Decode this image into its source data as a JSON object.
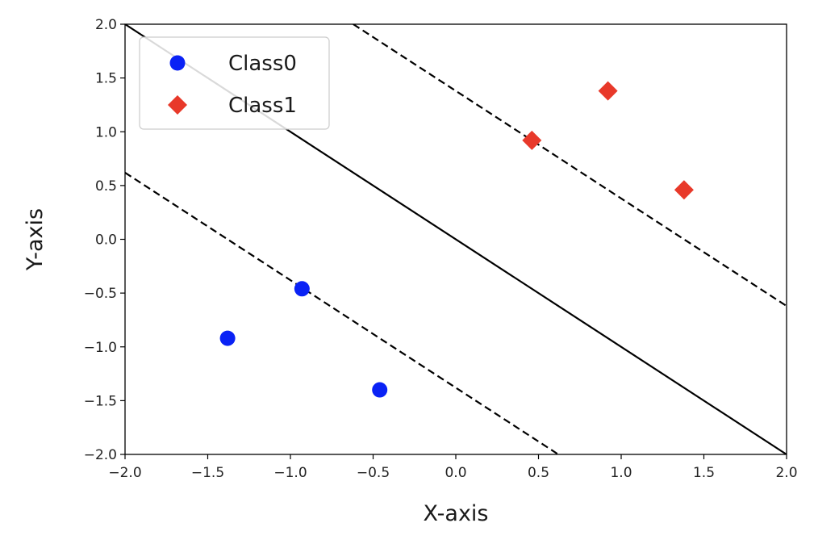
{
  "chart_data": {
    "type": "scatter",
    "title": "",
    "xlabel": "X-axis",
    "ylabel": "Y-axis",
    "xlim": [
      -2.0,
      2.0
    ],
    "ylim": [
      -2.0,
      2.0
    ],
    "xticks": [
      "−2.0",
      "−1.5",
      "−1.0",
      "−0.5",
      "0.0",
      "0.5",
      "1.0",
      "1.5",
      "2.0"
    ],
    "yticks": [
      "2.0",
      "1.5",
      "1.0",
      "0.5",
      "0.0",
      "−0.5",
      "−1.0",
      "−1.5",
      "−2.0"
    ],
    "grid": false,
    "legend_position": "upper-left",
    "series": [
      {
        "name": "Class0",
        "marker": "circle",
        "color": "#0a22f5",
        "points": [
          [
            -0.93,
            -0.46
          ],
          [
            -1.38,
            -0.92
          ],
          [
            -0.46,
            -1.4
          ]
        ]
      },
      {
        "name": "Class1",
        "marker": "diamond",
        "color": "#e8392a",
        "points": [
          [
            0.46,
            0.92
          ],
          [
            0.92,
            1.38
          ],
          [
            1.38,
            0.46
          ]
        ]
      }
    ],
    "lines": [
      {
        "kind": "decision-boundary",
        "style": "solid",
        "color": "#000000",
        "from": [
          -2.0,
          2.0
        ],
        "to": [
          2.0,
          -2.0
        ]
      },
      {
        "kind": "upper-margin",
        "style": "dashed",
        "color": "#000000",
        "from": [
          -0.62,
          2.0
        ],
        "to": [
          2.0,
          -0.62
        ]
      },
      {
        "kind": "lower-margin",
        "style": "dashed",
        "color": "#000000",
        "from": [
          -2.0,
          0.62
        ],
        "to": [
          0.62,
          -2.0
        ]
      }
    ]
  }
}
